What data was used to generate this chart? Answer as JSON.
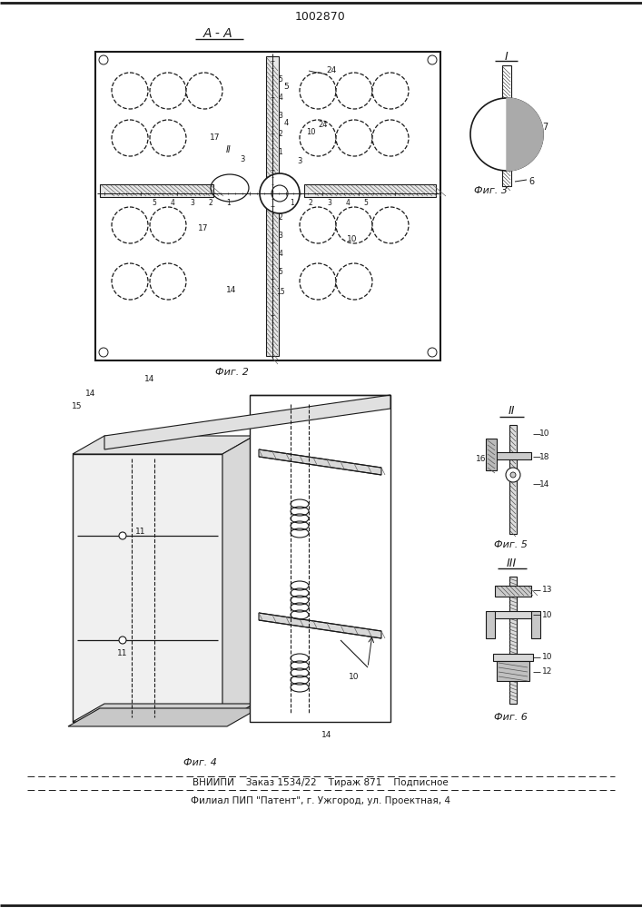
{
  "title": "1002870",
  "aa_label": "А - А",
  "fig2_caption": "Фиг. 2",
  "fig4_caption": "Фиг. 4",
  "fig3_caption": "Фиг. 3",
  "fig5_caption": "Фиг. 5",
  "fig6_caption": "Фиг. 6",
  "label_I": "I",
  "label_II": "II",
  "label_III": "III",
  "footer1": "ВНИИПИ    Заказ 1534/22    Тираж 871    Подписное",
  "footer2": "Филиал ПИП \"Патент\", г. Ужгород, ул. Проектная, 4",
  "line_color": "#1a1a1a"
}
